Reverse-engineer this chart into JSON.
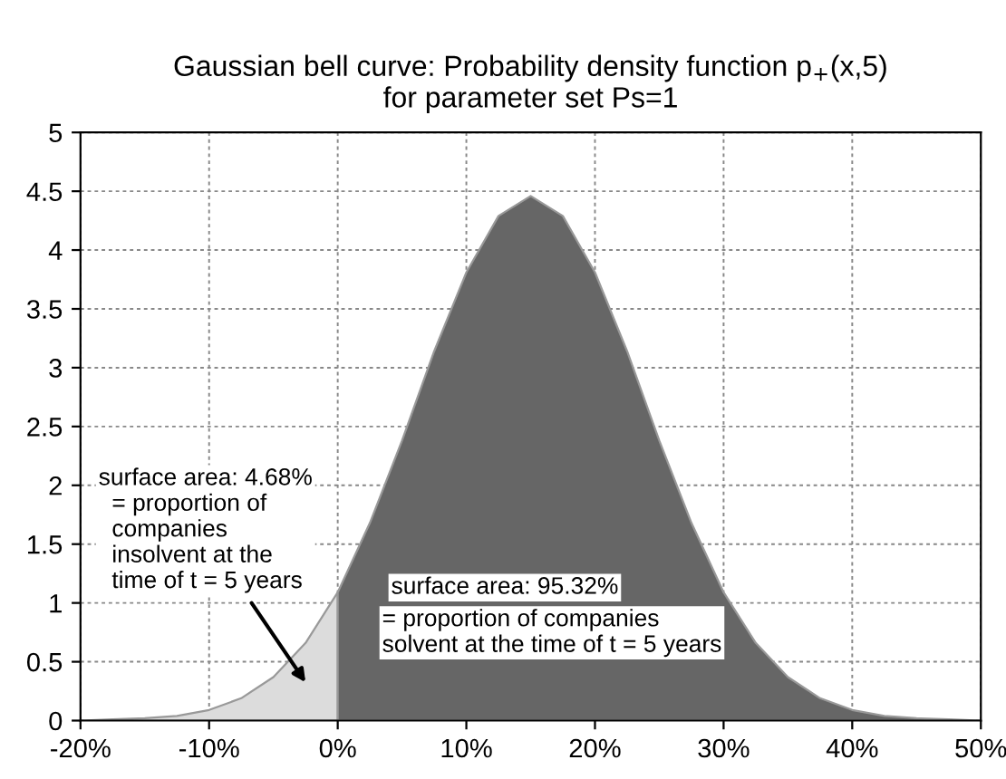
{
  "chart_data": {
    "type": "area",
    "title": "Gaussian bell curve: Probability density function p$_{+}$(x,5)\nfor parameter set Ps=1",
    "series": [
      {
        "color": "#dcdcdc",
        "x": [
          -20,
          -17.5,
          -15,
          -12.5,
          -10,
          -7.5,
          -5,
          -2.5,
          0
        ],
        "values": [
          0,
          0.01,
          0.02,
          0.04,
          0.09,
          0.19,
          0.37,
          0.66,
          1.09
        ]
      },
      {
        "color": "#666666",
        "x": [
          0,
          2.5,
          5,
          7.5,
          10,
          12.5,
          15,
          17.5,
          20,
          22.5,
          25,
          27.5,
          30,
          32.5,
          35,
          37.5,
          40,
          42.5,
          45,
          47.5,
          50
        ],
        "values": [
          1.09,
          1.68,
          2.38,
          3.14,
          3.81,
          4.29,
          4.46,
          4.29,
          3.81,
          3.14,
          2.38,
          1.68,
          1.09,
          0.66,
          0.37,
          0.19,
          0.09,
          0.04,
          0.02,
          0.01,
          0
        ]
      }
    ],
    "xlim": [
      -20,
      50
    ],
    "xticks": [
      {
        "value": -20,
        "label": "-20%"
      },
      {
        "value": -10,
        "label": "-10%"
      },
      {
        "value": 0,
        "label": "0%"
      },
      {
        "value": 10,
        "label": "10%"
      },
      {
        "value": 20,
        "label": "20%"
      },
      {
        "value": 30,
        "label": "30%"
      },
      {
        "value": 40,
        "label": "40%"
      },
      {
        "value": 50,
        "label": "50%"
      }
    ],
    "ylim": [
      0,
      5
    ],
    "yticks": [
      0,
      0.5,
      1,
      1.5,
      2,
      2.5,
      3,
      3.5,
      4,
      4.5,
      5
    ],
    "grid": true,
    "annotations": [
      "surface area: 4.68%\n  = proportion of\n  companies\n  insolvent at the\n  time of t = 5 years",
      "surface area: 95.32%",
      "= proportion of companies\nsolvent at the time of t = 5 years"
    ]
  }
}
